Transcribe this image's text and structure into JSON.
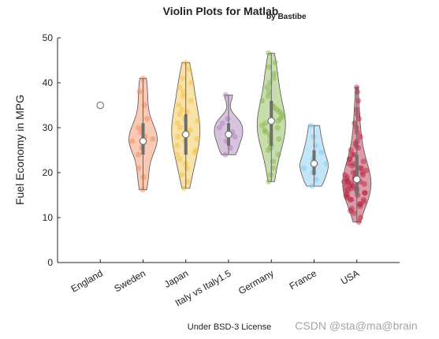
{
  "chart_data": {
    "type": "violin",
    "title": "Violin Plots for Matlab",
    "title_suffix": "by Bastibe",
    "ylabel": "Fuel Economy in MPG",
    "xlabel": "",
    "ylim": [
      0,
      50
    ],
    "yticks": [
      0,
      10,
      20,
      30,
      40,
      50
    ],
    "grid": false,
    "footer": "Under BSD-3 License",
    "watermark": "CSDN @sta@ma@brain",
    "categories": [
      {
        "name": "England",
        "color": "#ffffff",
        "min": 35,
        "max": 35,
        "median": 35,
        "q1": 35,
        "q3": 35,
        "points": [
          35
        ]
      },
      {
        "name": "Sweden",
        "color": "#f0875a",
        "min": 16.2,
        "max": 41,
        "median": 27,
        "q1": 24,
        "q3": 31,
        "points": [
          16.2,
          19,
          21,
          24,
          25.5,
          26.5,
          27,
          27.5,
          28,
          29,
          30,
          32,
          35,
          38,
          41
        ]
      },
      {
        "name": "Japan",
        "color": "#f2be3c",
        "min": 16.5,
        "max": 44.5,
        "median": 28.5,
        "q1": 24,
        "q3": 33,
        "points": [
          16.5,
          18,
          19.5,
          21,
          22,
          23,
          24,
          24.5,
          25,
          26,
          27,
          27.5,
          28,
          28.5,
          29,
          29.5,
          30,
          31,
          31.5,
          32,
          33,
          33.5,
          34,
          35,
          36,
          37,
          38,
          39,
          40,
          41,
          43,
          44.5
        ]
      },
      {
        "name": "Italy vs Italy1.5",
        "color": "#a77bb5",
        "min": 24,
        "max": 37.3,
        "median": 28.5,
        "q1": 26,
        "q3": 31,
        "points": [
          24,
          25.5,
          27,
          28,
          29,
          30,
          31,
          32,
          37.3
        ]
      },
      {
        "name": "Germany",
        "color": "#82b445",
        "min": 18,
        "max": 46.6,
        "median": 31.5,
        "q1": 26,
        "q3": 36,
        "points": [
          18,
          19.5,
          21,
          22.5,
          24,
          25,
          25.5,
          26,
          27,
          27.5,
          28,
          28.5,
          29,
          29.5,
          30,
          30.5,
          31,
          31.5,
          32,
          32.5,
          33,
          33.5,
          34,
          34.5,
          35,
          36,
          37,
          38,
          39,
          40,
          41,
          42,
          43.5,
          44.5,
          46.6
        ]
      },
      {
        "name": "France",
        "color": "#78c8f0",
        "min": 17,
        "max": 30.5,
        "median": 22,
        "q1": 19.5,
        "q3": 25,
        "points": [
          17,
          18.5,
          20,
          21,
          22,
          23,
          24.5,
          26,
          28,
          30.5
        ]
      },
      {
        "name": "USA",
        "color": "#b41e3c",
        "min": 9,
        "max": 39,
        "median": 18.5,
        "q1": 15,
        "q3": 24,
        "points": [
          9,
          10,
          11,
          11.5,
          12,
          12.5,
          13,
          13,
          13.5,
          14,
          14,
          14,
          14.5,
          15,
          15,
          15,
          15.5,
          15.5,
          16,
          16,
          16,
          16.5,
          16.5,
          17,
          17,
          17,
          17.5,
          17.5,
          18,
          18,
          18,
          18,
          18.5,
          18.5,
          19,
          19,
          19,
          19.5,
          19.5,
          20,
          20,
          20,
          20.5,
          21,
          21,
          21.5,
          22,
          22,
          22.5,
          23,
          23,
          24,
          24,
          25,
          25.5,
          26,
          26.5,
          27,
          28,
          29,
          30,
          31,
          32,
          33,
          34,
          36,
          38,
          39
        ]
      }
    ]
  }
}
